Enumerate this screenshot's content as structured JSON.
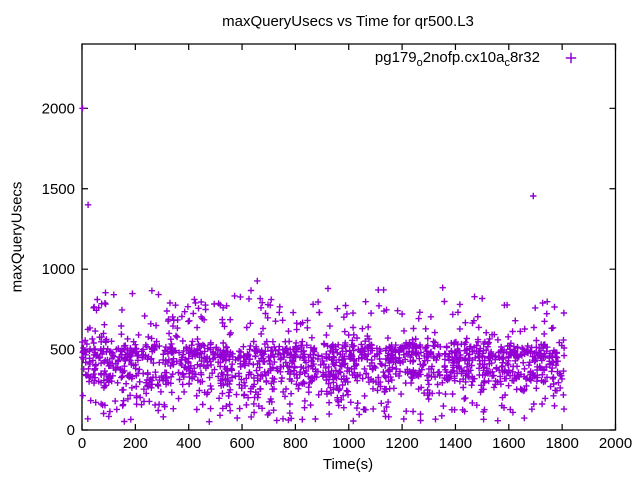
{
  "chart_data": {
    "type": "scatter",
    "title": "maxQueryUsecs vs Time for qr500.L3",
    "xlabel": "Time(s)",
    "ylabel": "maxQueryUsecs",
    "xlim": [
      0,
      2000
    ],
    "ylim": [
      0,
      2400
    ],
    "xticks": [
      0,
      200,
      400,
      600,
      800,
      1000,
      1200,
      1400,
      1600,
      1800,
      2000
    ],
    "yticks": [
      0,
      500,
      1000,
      1500,
      2000
    ],
    "grid": false,
    "axis_color": "#000000",
    "series_color": "#9400d3",
    "marker": "plus",
    "legend": {
      "position": "top-right-inside",
      "marker": "plus",
      "label": "pg179_o2nofp.cx10a_c8r32",
      "parts": [
        "pg179",
        "o",
        "2nofp.cx10a",
        "c",
        "8r32"
      ]
    },
    "x_data_range": [
      0,
      1810
    ],
    "outlier_points": [
      [
        2,
        2000
      ],
      [
        23,
        1400
      ],
      [
        657,
        927
      ],
      [
        1692,
        1455
      ]
    ],
    "point_cloud": {
      "description": "dense band of ~1700 per-second samples between ~50 and ~900 usecs, concentrated around 300-500",
      "n": 1700,
      "seed": 20240517,
      "x_uniform": [
        0,
        1808
      ],
      "y_bands": [
        {
          "weight": 0.34,
          "dist": "normal",
          "mean": 480,
          "sd": 35
        },
        {
          "weight": 0.27,
          "dist": "normal",
          "mean": 345,
          "sd": 50
        },
        {
          "weight": 0.21,
          "dist": "normal",
          "mean": 410,
          "sd": 100
        },
        {
          "weight": 0.08,
          "dist": "uniform",
          "min": 560,
          "max": 800
        },
        {
          "weight": 0.012,
          "dist": "uniform",
          "min": 790,
          "max": 885
        },
        {
          "weight": 0.088,
          "dist": "uniform",
          "min": 45,
          "max": 260
        }
      ],
      "y_clip": [
        18,
        930
      ]
    }
  }
}
